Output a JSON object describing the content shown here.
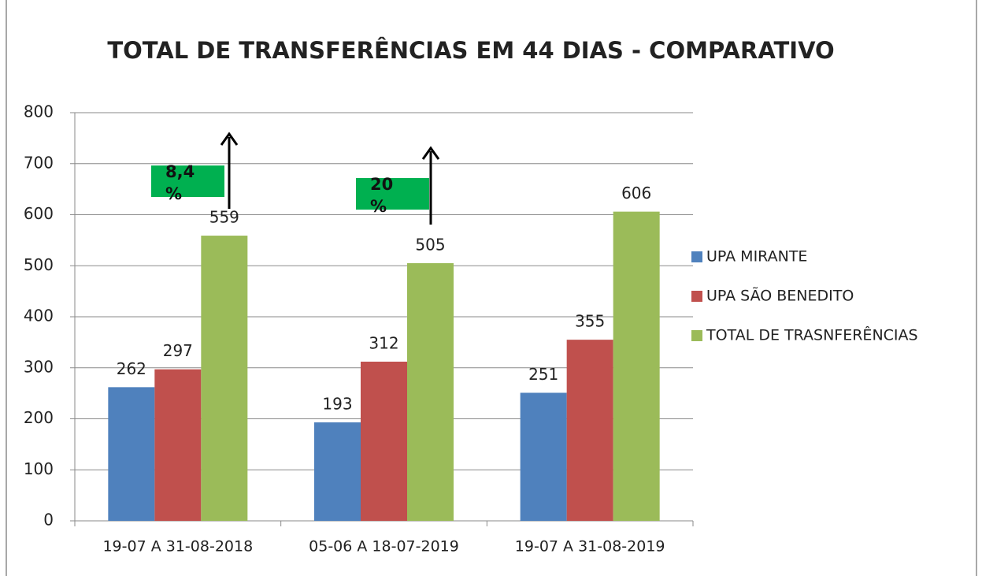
{
  "chart_data": {
    "type": "bar",
    "title": "TOTAL DE TRANSFERÊNCIAS  EM 44 DIAS - COMPARATIVO",
    "categories": [
      "19-07 A 31-08-2018",
      "05-06 A 18-07-2019",
      "19-07 A 31-08-2019"
    ],
    "series": [
      {
        "name": "UPA MIRANTE",
        "color": "#4f81bd",
        "values": [
          262,
          193,
          251
        ]
      },
      {
        "name": "UPA SÃO BENEDITO",
        "color": "#c0504d",
        "values": [
          297,
          312,
          355
        ]
      },
      {
        "name": "TOTAL DE TRASNFERÊNCIAS",
        "color": "#9bbb59",
        "values": [
          559,
          505,
          606
        ]
      }
    ],
    "ylim": [
      0,
      800
    ],
    "yticks": [
      0,
      100,
      200,
      300,
      400,
      500,
      600,
      700,
      800
    ],
    "grid": true,
    "legend": "right",
    "annotations": [
      {
        "text": "8,4 %"
      },
      {
        "text": "20 %"
      }
    ]
  }
}
